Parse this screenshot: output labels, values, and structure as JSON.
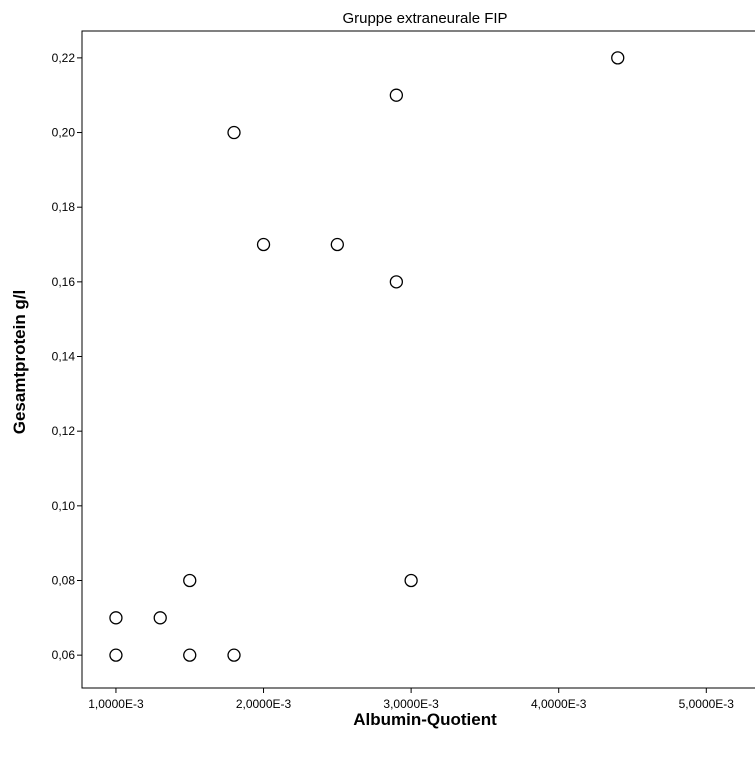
{
  "chart_data": {
    "type": "scatter",
    "title": "Gruppe extraneurale FIP",
    "xlabel": "Albumin-Quotient",
    "ylabel": "Gesamtprotein g/l",
    "xlim": [
      0.00077,
      0.00533
    ],
    "ylim": [
      0.0512,
      0.2272
    ],
    "xticks": [
      0.001,
      0.002,
      0.003,
      0.004,
      0.005
    ],
    "xtick_labels": [
      "1,0000E-3",
      "2,0000E-3",
      "3,0000E-3",
      "4,0000E-3",
      "5,0000E-3"
    ],
    "yticks": [
      0.06,
      0.08,
      0.1,
      0.12,
      0.14,
      0.16,
      0.18,
      0.2,
      0.22
    ],
    "ytick_labels": [
      "0,06",
      "0,08",
      "0,10",
      "0,12",
      "0,14",
      "0,16",
      "0,18",
      "0,20",
      "0,22"
    ],
    "grid": false,
    "marker": "open-circle",
    "points": [
      {
        "x": 0.001,
        "y": 0.06
      },
      {
        "x": 0.001,
        "y": 0.07
      },
      {
        "x": 0.0013,
        "y": 0.07
      },
      {
        "x": 0.0015,
        "y": 0.08
      },
      {
        "x": 0.0015,
        "y": 0.06
      },
      {
        "x": 0.0018,
        "y": 0.06
      },
      {
        "x": 0.0018,
        "y": 0.2
      },
      {
        "x": 0.002,
        "y": 0.17
      },
      {
        "x": 0.0025,
        "y": 0.17
      },
      {
        "x": 0.0029,
        "y": 0.21
      },
      {
        "x": 0.0029,
        "y": 0.16
      },
      {
        "x": 0.003,
        "y": 0.08
      },
      {
        "x": 0.0044,
        "y": 0.22
      }
    ]
  }
}
